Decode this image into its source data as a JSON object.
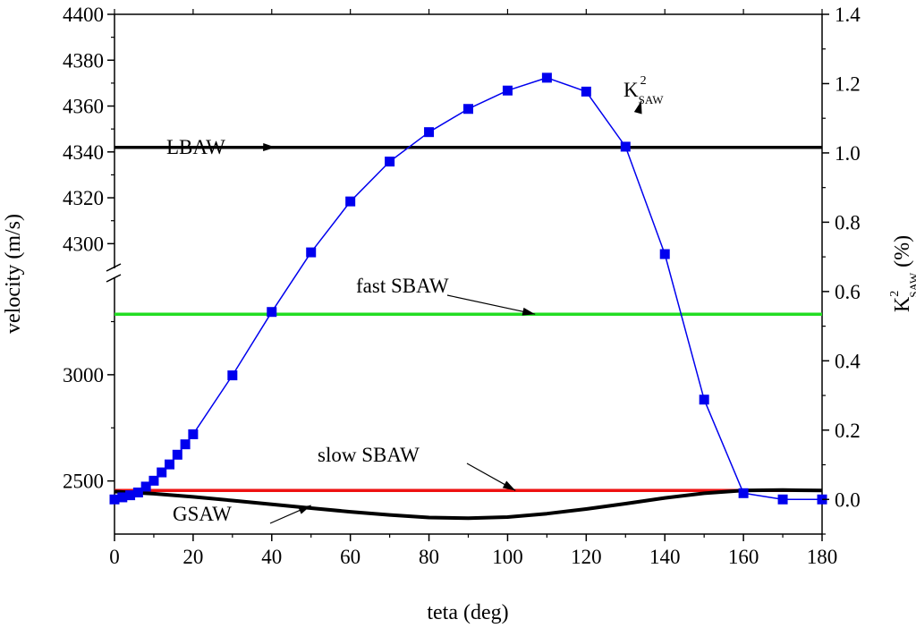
{
  "chart_data": {
    "type": "line",
    "x_axis": {
      "label": "teta (deg)",
      "range": [
        0,
        180
      ],
      "ticks": [
        "0",
        "20",
        "40",
        "60",
        "80",
        "100",
        "120",
        "140",
        "160",
        "180"
      ]
    },
    "y_left": {
      "label": "velocity (m/s)",
      "upper_segment": {
        "range": [
          4290,
          4400
        ],
        "ticks": [
          "4300",
          "4320",
          "4340",
          "4360",
          "4380",
          "4400"
        ]
      },
      "lower_segment": {
        "range": [
          2250,
          3450
        ],
        "ticks": [
          "2500",
          "3000"
        ]
      },
      "break": true
    },
    "y_right": {
      "label_base": "K",
      "label_sup": "2",
      "label_sub": "SAW",
      "label_tail": "(%)",
      "range": [
        -0.1,
        1.4
      ],
      "ticks": [
        "0.0",
        "0.2",
        "0.4",
        "0.6",
        "0.8",
        "1.0",
        "1.2",
        "1.4"
      ]
    },
    "series": [
      {
        "axis": "y_left",
        "segment": "upper",
        "color": "#000000",
        "x": [
          0,
          180
        ],
        "y": [
          4342,
          4342
        ]
      },
      {
        "axis": "y_left",
        "segment": "lower",
        "color": "#22dd22",
        "x": [
          0,
          180
        ],
        "y": [
          3285,
          3285
        ]
      },
      {
        "axis": "y_left",
        "segment": "lower",
        "color": "#ee1111",
        "x": [
          0,
          180
        ],
        "y": [
          2455,
          2455
        ]
      },
      {
        "axis": "y_left",
        "segment": "lower",
        "color": "#000000",
        "x": [
          0,
          10,
          20,
          30,
          40,
          50,
          60,
          70,
          80,
          90,
          100,
          110,
          120,
          130,
          140,
          150,
          160,
          170,
          180
        ],
        "y": [
          2450,
          2440,
          2425,
          2408,
          2390,
          2372,
          2355,
          2340,
          2328,
          2325,
          2330,
          2346,
          2368,
          2393,
          2420,
          2442,
          2455,
          2457,
          2455
        ]
      },
      {
        "axis": "y_right",
        "color": "#0000ee",
        "marker": "square",
        "x": [
          0,
          2,
          4,
          6,
          8,
          10,
          12,
          14,
          16,
          18,
          20,
          30,
          40,
          50,
          60,
          70,
          80,
          90,
          100,
          110,
          120,
          130,
          140,
          150,
          160,
          170,
          180
        ],
        "y": [
          0.0,
          0.006,
          0.012,
          0.02,
          0.037,
          0.054,
          0.078,
          0.101,
          0.129,
          0.159,
          0.188,
          0.358,
          0.541,
          0.713,
          0.86,
          0.975,
          1.06,
          1.127,
          1.18,
          1.217,
          1.177,
          1.018,
          0.708,
          0.288,
          0.018,
          0.0,
          0.0
        ]
      }
    ],
    "annotations": [
      {
        "text": "LBAW",
        "point_x": 41,
        "point_y": 4342,
        "axis": "y_left"
      },
      {
        "text": "fast SBAW",
        "point_x": 107,
        "point_y": 3285,
        "axis": "y_left"
      },
      {
        "text": "slow SBAW",
        "point_x": 102,
        "point_y": 2455,
        "axis": "y_left"
      },
      {
        "text": "GSAW",
        "point_x": 50,
        "point_y": 2385,
        "axis": "y_left"
      },
      {
        "text_base": "K",
        "text_sup": "2",
        "text_sub": "SAW",
        "point_x": 134,
        "point_y": 1.15,
        "axis": "y_right"
      }
    ]
  }
}
